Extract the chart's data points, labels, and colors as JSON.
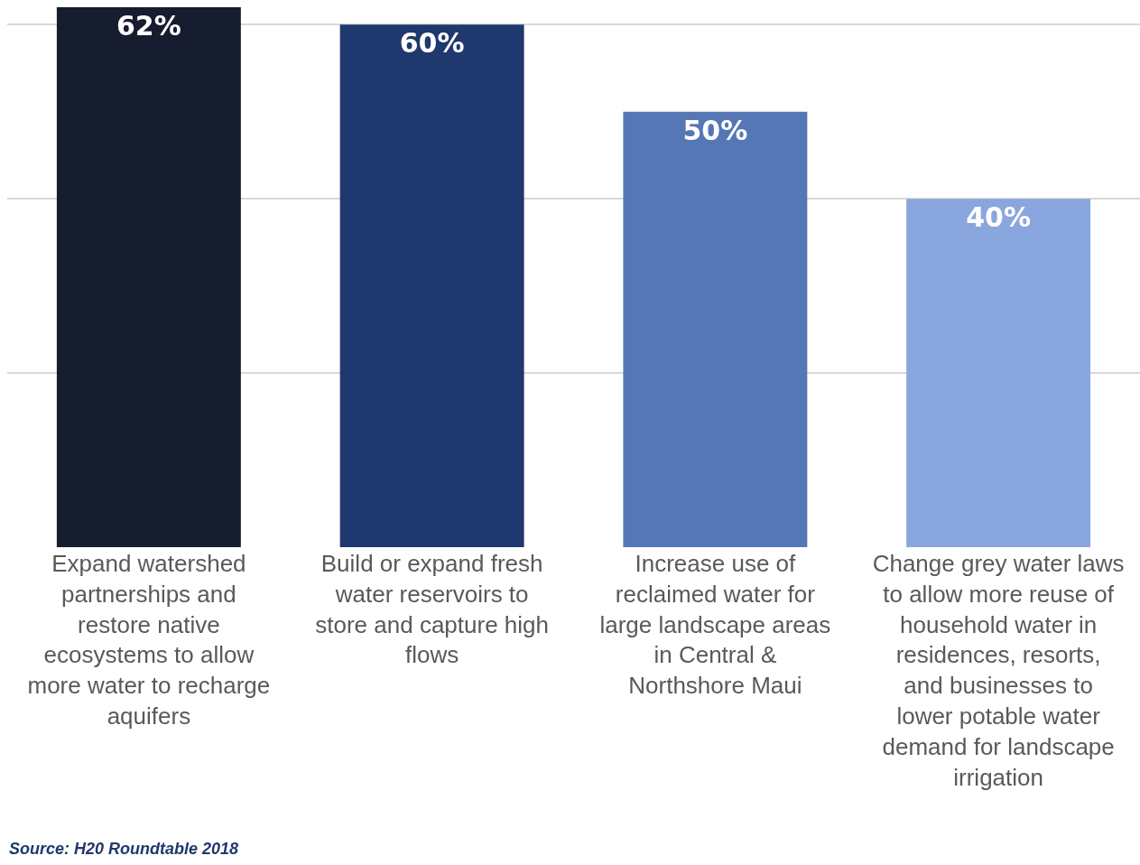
{
  "chart_data": {
    "type": "bar",
    "categories": [
      "Expand watershed partnerships and restore native ecosystems to allow more water to recharge aquifers",
      "Build or expand fresh water reservoirs to store and capture high flows",
      "Increase use of reclaimed water for large landscape areas in Central & Northshore Maui",
      "Change grey water laws to allow more reuse of household water in residences, resorts, and businesses to lower potable water demand for landscape irrigation"
    ],
    "values": [
      62,
      60,
      50,
      40
    ],
    "colors": [
      "#161d2f",
      "#1f386d",
      "#5677b5",
      "#8aa6de"
    ],
    "value_labels": [
      "62%",
      "60%",
      "50%",
      "40%"
    ],
    "ylim": [
      0,
      62
    ],
    "grid": "y",
    "tick_labels": "x",
    "annotations": [
      "Source: H20 Roundtable 2018"
    ]
  }
}
